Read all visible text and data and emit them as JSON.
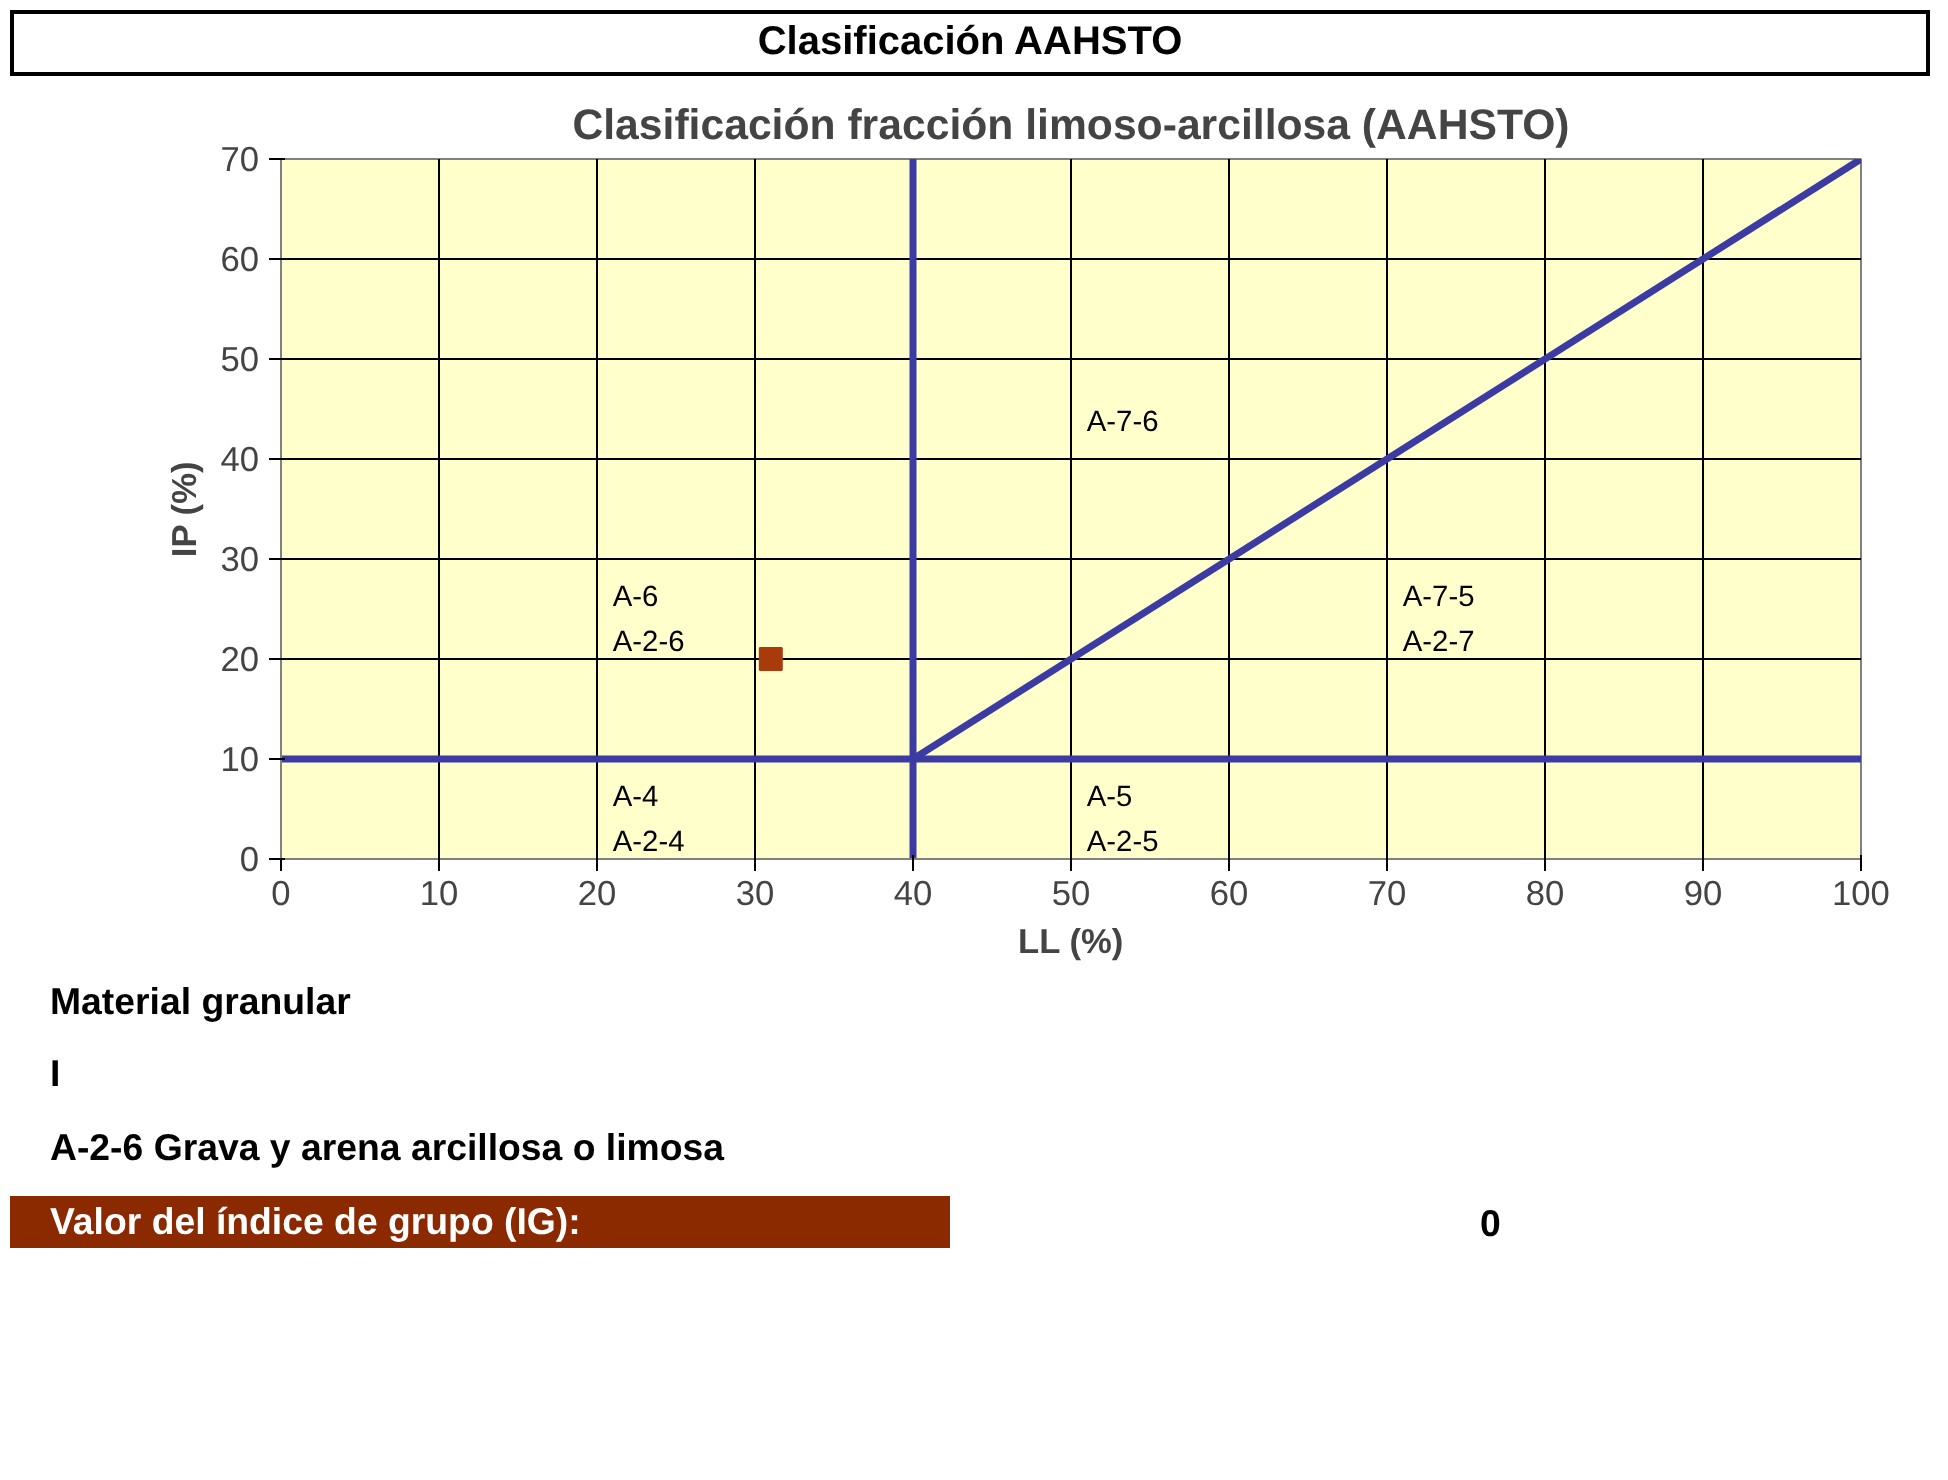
{
  "chart_data": {
    "type": "scatter",
    "subtitle": "Clasificación AAHSTO",
    "title": "Clasificación fracción limoso-arcillosa (AAHSTO)",
    "xlabel": "LL (%)",
    "ylabel": "IP (%)",
    "xlim": [
      0,
      100
    ],
    "ylim": [
      0,
      70
    ],
    "xticks": [
      0,
      10,
      20,
      30,
      40,
      50,
      60,
      70,
      80,
      90,
      100
    ],
    "yticks": [
      0,
      10,
      20,
      30,
      40,
      50,
      60,
      70
    ],
    "grid": true,
    "series": [
      {
        "type": "line",
        "color": "#3b3ba3",
        "x": [
          0,
          100
        ],
        "values": [
          10,
          10
        ]
      },
      {
        "type": "line",
        "color": "#3b3ba3",
        "x": [
          40,
          40
        ],
        "values": [
          0,
          70
        ]
      },
      {
        "type": "line",
        "color": "#3b3ba3",
        "x": [
          40,
          100
        ],
        "values": [
          10,
          70
        ]
      },
      {
        "color": "#a83a0c",
        "marker": "square",
        "x": [
          31
        ],
        "values": [
          20
        ]
      }
    ],
    "annotations": [
      "A-7-6",
      "A-6\nA-2-6",
      "A-7-5\nA-2-7",
      "A-4\nA-2-4",
      "A-5\nA-2-5",
      "Material granular",
      "I",
      "A-2-6 Grava y arena arcillosa o limosa",
      "Valor del índice de grupo (IG):",
      "0"
    ]
  }
}
